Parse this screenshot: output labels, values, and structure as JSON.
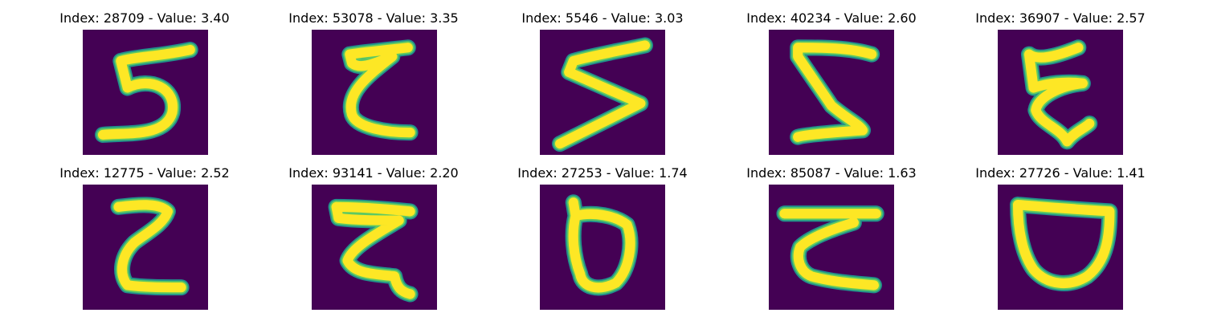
{
  "colors": {
    "background": "#440154",
    "stroke_outer": "#21918c",
    "stroke_mid": "#5ec962",
    "stroke_core": "#fde725"
  },
  "panels": [
    {
      "index": "28709",
      "value": "3.40",
      "title": "Index: 28709 - Value: 3.40"
    },
    {
      "index": "53078",
      "value": "3.35",
      "title": "Index: 53078 - Value: 3.35"
    },
    {
      "index": "5546",
      "value": "3.03",
      "title": "Index: 5546 - Value: 3.03"
    },
    {
      "index": "40234",
      "value": "2.60",
      "title": "Index: 40234 - Value: 2.60"
    },
    {
      "index": "36907",
      "value": "2.57",
      "title": "Index: 36907 - Value: 2.57"
    },
    {
      "index": "12775",
      "value": "2.52",
      "title": "Index: 12775 - Value: 2.52"
    },
    {
      "index": "93141",
      "value": "2.20",
      "title": "Index: 93141 - Value: 2.20"
    },
    {
      "index": "27253",
      "value": "1.74",
      "title": "Index: 27253 - Value: 1.74"
    },
    {
      "index": "85087",
      "value": "1.63",
      "title": "Index: 85087 - Value: 1.63"
    },
    {
      "index": "27726",
      "value": "1.41",
      "title": "Index: 27726 - Value: 1.41"
    }
  ]
}
